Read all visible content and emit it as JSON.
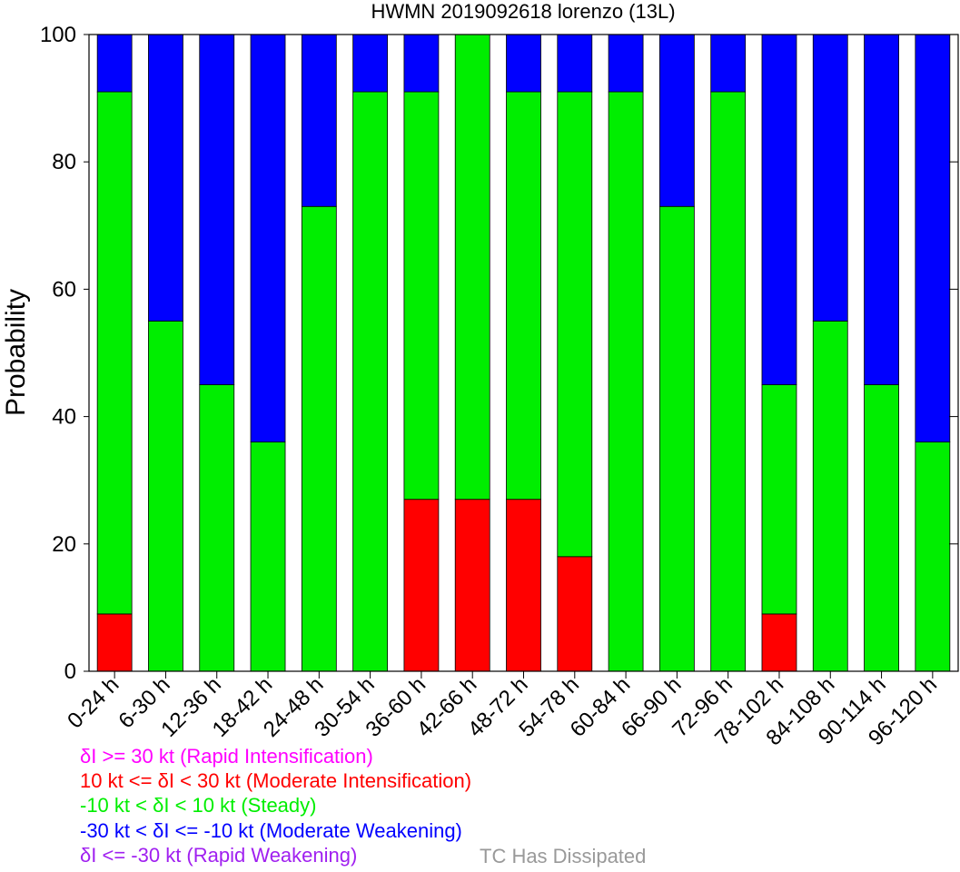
{
  "chart_data": {
    "type": "bar",
    "stacked": true,
    "title": "HWMN 2019092618 lorenzo (13L)",
    "ylabel": "Probability",
    "ylim": [
      0,
      100
    ],
    "yticks": [
      "0",
      "20",
      "40",
      "60",
      "80",
      "100"
    ],
    "categories": [
      "0-24 h",
      "6-30 h",
      "12-36 h",
      "18-42 h",
      "24-48 h",
      "30-54 h",
      "36-60 h",
      "42-66 h",
      "48-72 h",
      "54-78 h",
      "60-84 h",
      "66-90 h",
      "72-96 h",
      "78-102 h",
      "84-108 h",
      "90-114 h",
      "96-120 h"
    ],
    "series": [
      {
        "name": "Rapid Intensification",
        "color": "#ff00ff",
        "values": [
          0,
          0,
          0,
          0,
          0,
          0,
          0,
          0,
          0,
          0,
          0,
          0,
          0,
          0,
          0,
          0,
          0
        ]
      },
      {
        "name": "Moderate Intensification",
        "color": "#ff0000",
        "values": [
          9,
          0,
          0,
          0,
          0,
          0,
          27,
          27,
          27,
          18,
          0,
          0,
          0,
          9,
          0,
          0,
          0
        ]
      },
      {
        "name": "Steady",
        "color": "#00ee00",
        "values": [
          82,
          55,
          45,
          36,
          73,
          91,
          64,
          73,
          64,
          73,
          91,
          73,
          91,
          36,
          55,
          45,
          36
        ]
      },
      {
        "name": "Moderate Weakening",
        "color": "#0000ff",
        "values": [
          9,
          45,
          55,
          64,
          27,
          9,
          9,
          0,
          9,
          9,
          9,
          27,
          9,
          55,
          45,
          55,
          64
        ]
      },
      {
        "name": "Rapid Weakening",
        "color": "#a020f0",
        "values": [
          0,
          0,
          0,
          0,
          0,
          0,
          0,
          0,
          0,
          0,
          0,
          0,
          0,
          0,
          0,
          0,
          0
        ]
      }
    ],
    "grid": false,
    "legend_placement": "bottom-left"
  },
  "legend": {
    "items": [
      {
        "text": "δI >= 30 kt (Rapid Intensification)",
        "color": "#ff00ff"
      },
      {
        "text": "10 kt <= δI < 30 kt (Moderate Intensification)",
        "color": "#ff0000"
      },
      {
        "text": "-10 kt < δI < 10 kt (Steady)",
        "color": "#00ee00"
      },
      {
        "text": "-30 kt < δI <= -10 kt (Moderate Weakening)",
        "color": "#0000ff"
      },
      {
        "text": "δI <= -30 kt (Rapid Weakening)",
        "color": "#a020f0"
      }
    ],
    "dissipated": {
      "text": "TC Has Dissipated",
      "color": "#999999"
    }
  }
}
